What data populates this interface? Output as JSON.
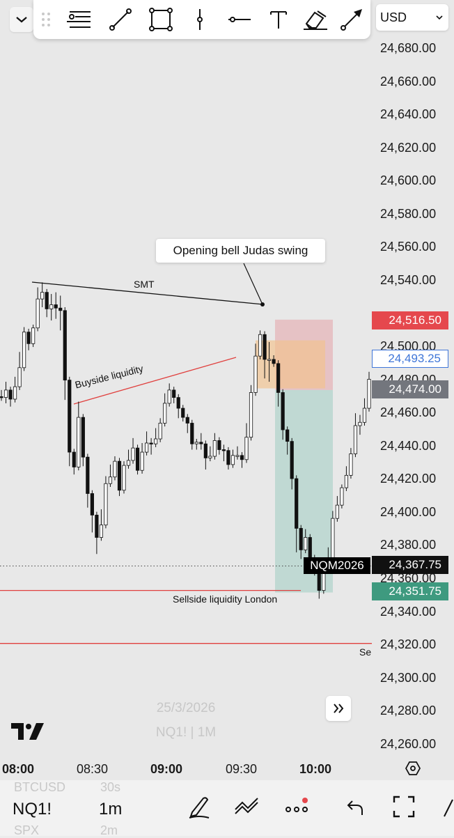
{
  "toolbar": {
    "tools": [
      "drag-handle-icon",
      "horizontal-lines-icon",
      "trend-line-icon",
      "rectangle-icon",
      "vertical-line-icon",
      "horizontal-ray-icon",
      "text-icon",
      "highlighter-icon",
      "arrow-icon"
    ]
  },
  "currency": {
    "label": "USD"
  },
  "price_axis": {
    "labels": [
      "24,680.00",
      "24,660.00",
      "24,640.00",
      "24,620.00",
      "24,600.00",
      "24,580.00",
      "24,560.00",
      "24,540.00",
      "24,500.00",
      "24,480.00",
      "24,460.00",
      "24,440.00",
      "24,420.00",
      "24,400.00",
      "24,380.00",
      "24,360.00",
      "24,340.00",
      "24,320.00",
      "24,300.00",
      "24,280.00",
      "24,260.00"
    ],
    "values": [
      24680,
      24660,
      24640,
      24620,
      24600,
      24580,
      24560,
      24540,
      24500,
      24480,
      24460,
      24440,
      24420,
      24400,
      24380,
      24360,
      24340,
      24320,
      24300,
      24280,
      24260
    ]
  },
  "badges": {
    "stop": {
      "label": "24,516.50",
      "color": "#e5484d"
    },
    "entry_outline": {
      "label": "24,493.25",
      "color": "#3f76d8"
    },
    "entry": {
      "label": "24,474.00",
      "color": "#73767d"
    },
    "last": {
      "label": "24,367.75",
      "color": "#111111"
    },
    "target": {
      "label": "24,351.75",
      "color": "#3e9a7f"
    }
  },
  "symbol_tag": {
    "label": "NQM2026"
  },
  "time_axis": {
    "labels": [
      {
        "text": "08:00",
        "bold": true
      },
      {
        "text": "08:30",
        "bold": false
      },
      {
        "text": "09:00",
        "bold": true
      },
      {
        "text": "09:30",
        "bold": false
      },
      {
        "text": "10:00",
        "bold": true
      }
    ]
  },
  "annotations": {
    "callout": "Opening bell Judas swing",
    "smt": "SMT",
    "buyside": "Buyside liquidity",
    "sellside": "Sellside liquidity London",
    "sellside_cut": "Se"
  },
  "watermark": {
    "date": "25/3/2026",
    "symbol": "NQ1! | 1M"
  },
  "bottom": {
    "ghost_top_symbol": "BTCUSD",
    "ghost_top_interval": "30s",
    "symbol": "NQ1!",
    "interval": "1m",
    "ghost_bottom_symbol": "SPX",
    "ghost_bottom_interval": "2m"
  },
  "chart_data": {
    "type": "candlestick",
    "ylim": [
      24253,
      24693
    ],
    "x": [
      "08:00",
      "08:30",
      "09:00",
      "09:30",
      "10:00"
    ],
    "levels": {
      "stop": 24516.5,
      "entry_outline": 24493.25,
      "entry": 24474.0,
      "last": 24367.75,
      "target": 24351.75,
      "sellside_line_1": 24353,
      "sellside_line_2": 24321
    },
    "path": [
      [
        24472,
        24470
      ],
      [
        24477,
        24468
      ],
      [
        24474,
        24466
      ],
      [
        24480,
        24469
      ],
      [
        24495,
        24483
      ],
      [
        24510,
        24505
      ],
      [
        24507,
        24500
      ],
      [
        24511,
        24509
      ],
      [
        24534,
        24527
      ],
      [
        24537,
        24526
      ],
      [
        24529,
        24520
      ],
      [
        24530,
        24518
      ],
      [
        24531,
        24519
      ],
      [
        24529,
        24512
      ],
      [
        24493,
        24470
      ],
      [
        24440,
        24430
      ],
      [
        24433,
        24425
      ],
      [
        24465,
        24447
      ],
      [
        24440,
        24430
      ],
      [
        24415,
        24405
      ],
      [
        24410,
        24390
      ],
      [
        24390,
        24377
      ],
      [
        24400,
        24388
      ],
      [
        24420,
        24412
      ],
      [
        24427,
        24419
      ],
      [
        24432,
        24427
      ],
      [
        24418,
        24412
      ],
      [
        24429,
        24425
      ],
      [
        24436,
        24430
      ],
      [
        24443,
        24432
      ],
      [
        24429,
        24425
      ],
      [
        24440,
        24430
      ],
      [
        24447,
        24440
      ],
      [
        24443,
        24437
      ],
      [
        24449,
        24443
      ],
      [
        24455,
        24450
      ],
      [
        24470,
        24465
      ],
      [
        24476,
        24469
      ],
      [
        24474,
        24468
      ],
      [
        24464,
        24459
      ],
      [
        24461,
        24457
      ],
      [
        24455,
        24450
      ],
      [
        24446,
        24440
      ],
      [
        24442,
        24440
      ],
      [
        24446,
        24440
      ],
      [
        24435,
        24428
      ],
      [
        24438,
        24433
      ],
      [
        24446,
        24438
      ],
      [
        24442,
        24437
      ],
      [
        24439,
        24433
      ],
      [
        24433,
        24428
      ],
      [
        24436,
        24430
      ],
      [
        24438,
        24434
      ],
      [
        24432,
        24429
      ],
      [
        24452,
        24442
      ],
      [
        24475,
        24467
      ],
      [
        24500,
        24492
      ],
      [
        24508,
        24504
      ],
      [
        24505,
        24483
      ],
      [
        24501,
        24481
      ],
      [
        24493,
        24490
      ],
      [
        24476,
        24466
      ],
      [
        24457,
        24446
      ],
      [
        24446,
        24437
      ],
      [
        24428,
        24416
      ],
      [
        24400,
        24378
      ],
      [
        24384,
        24374
      ],
      [
        24388,
        24379
      ],
      [
        24376,
        24372
      ],
      [
        24368,
        24364
      ],
      [
        24359,
        24350
      ],
      [
        24371,
        24362
      ],
      [
        24377,
        24371
      ],
      [
        24399,
        24391
      ],
      [
        24408,
        24404
      ],
      [
        24415,
        24412
      ],
      [
        24426,
        24422
      ],
      [
        24437,
        24431
      ],
      [
        24458,
        24450
      ],
      [
        24457,
        24449
      ],
      [
        24467,
        24462
      ],
      [
        24483,
        24475
      ]
    ],
    "positions_tool": {
      "type": "short",
      "entry": 24474.0,
      "stop": 24516.5,
      "target": 24351.75
    }
  }
}
